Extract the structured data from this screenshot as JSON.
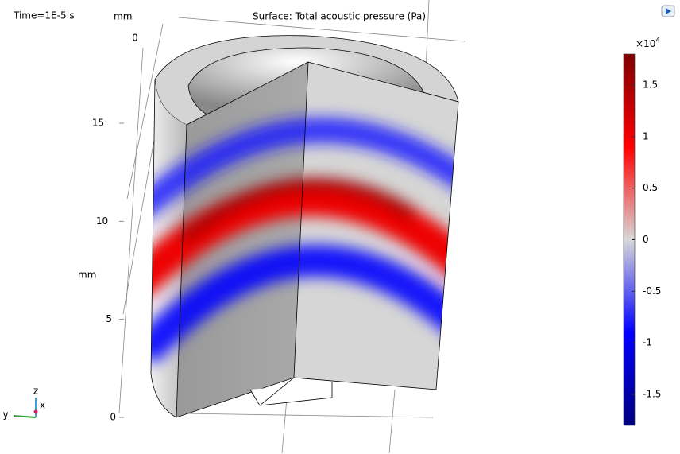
{
  "time_label": "Time=1E-5 s",
  "plot_title": "Surface: Total acoustic pressure (Pa)",
  "axes": {
    "top_unit": "mm",
    "side_unit": "mm",
    "top_ticks": [
      0
    ],
    "z_ticks": [
      0,
      5,
      10,
      15
    ]
  },
  "triad": {
    "y": "y",
    "z": "z",
    "x": "x"
  },
  "colorbar": {
    "multiplier": "×10",
    "exponent": "4",
    "lim": [
      -1.8,
      1.8
    ],
    "ticks": [
      -1.5,
      -1,
      -0.5,
      0,
      0.5,
      1,
      1.5
    ]
  }
}
